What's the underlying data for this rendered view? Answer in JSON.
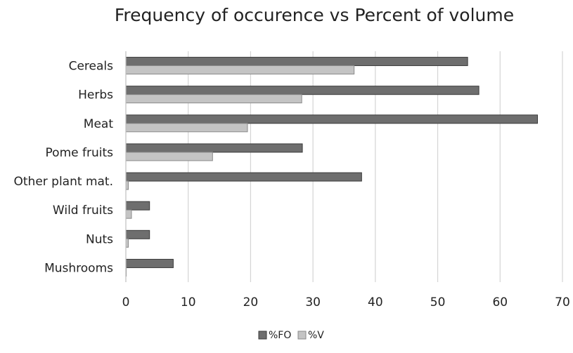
{
  "chart_data": {
    "type": "bar",
    "orientation": "horizontal",
    "title": "Frequency of occurence vs Percent of volume",
    "xlabel": "",
    "ylabel": "",
    "xlim": [
      0,
      70
    ],
    "x_ticks": [
      0,
      10,
      20,
      30,
      40,
      50,
      60,
      70
    ],
    "grid": "vertical",
    "legend_position": "bottom",
    "categories": [
      "Cereals",
      "Herbs",
      "Meat",
      "Pome fruits",
      "Other plant mat.",
      "Wild fruits",
      "Nuts",
      "Mushrooms"
    ],
    "series": [
      {
        "name": "%FO",
        "color": "#6e6e6e",
        "values": [
          54.8,
          56.6,
          66.0,
          28.3,
          37.8,
          3.8,
          3.8,
          7.6
        ]
      },
      {
        "name": "%V",
        "color": "#c4c4c4",
        "values": [
          36.6,
          28.2,
          19.5,
          13.9,
          0.4,
          0.9,
          0.4,
          0.0
        ]
      }
    ]
  }
}
